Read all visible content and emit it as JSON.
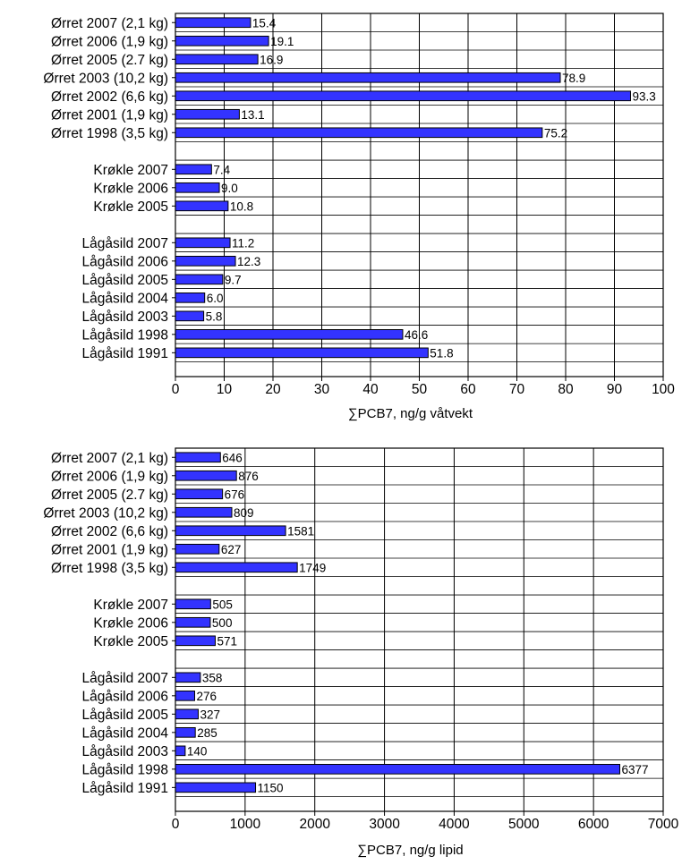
{
  "chart_data": [
    {
      "type": "bar",
      "orientation": "horizontal",
      "categories": [
        "Ørret 2007 (2,1 kg)",
        "Ørret 2006 (1,9 kg)",
        "Ørret 2005 (2.7 kg)",
        "Ørret 2003 (10,2 kg)",
        "Ørret 2002 (6,6 kg)",
        "Ørret 2001 (1,9 kg)",
        "Ørret 1998 (3,5 kg)",
        "",
        "Krøkle 2007",
        "Krøkle 2006",
        "Krøkle 2005",
        "",
        "Lågåsild 2007",
        "Lågåsild 2006",
        "Lågåsild 2005",
        "Lågåsild 2004",
        "Lågåsild 2003",
        "Lågåsild 1998",
        "Lågåsild 1991"
      ],
      "values": [
        15.4,
        19.1,
        16.9,
        78.9,
        93.3,
        13.1,
        75.2,
        null,
        7.4,
        9.0,
        10.8,
        null,
        11.2,
        12.3,
        9.7,
        6.0,
        5.8,
        46.6,
        51.8
      ],
      "value_labels": [
        "15.4",
        "19.1",
        "16.9",
        "78.9",
        "93.3",
        "13.1",
        "75.2",
        "",
        "7.4",
        "9.0",
        "10.8",
        "",
        "11.2",
        "12.3",
        "9.7",
        "6.0",
        "5.8",
        "46.6",
        "51.8"
      ],
      "xlabel": "∑PCB7, ng/g våtvekt",
      "xlim": [
        0,
        100
      ],
      "xticks": [
        0,
        10,
        20,
        30,
        40,
        50,
        60,
        70,
        80,
        90,
        100
      ],
      "xtick_labels": [
        "0",
        "10",
        "20",
        "30",
        "40",
        "50",
        "60",
        "70",
        "80",
        "90",
        "100"
      ],
      "grid": true,
      "bar_color": "#3333ff"
    },
    {
      "type": "bar",
      "orientation": "horizontal",
      "categories": [
        "Ørret 2007 (2,1 kg)",
        "Ørret 2006 (1,9 kg)",
        "Ørret 2005 (2.7 kg)",
        "Ørret 2003 (10,2 kg)",
        "Ørret 2002 (6,6 kg)",
        "Ørret 2001 (1,9 kg)",
        "Ørret 1998 (3,5 kg)",
        "",
        "Krøkle 2007",
        "Krøkle 2006",
        "Krøkle 2005",
        "",
        "Lågåsild 2007",
        "Lågåsild 2006",
        "Lågåsild 2005",
        "Lågåsild 2004",
        "Lågåsild 2003",
        "Lågåsild 1998",
        "Lågåsild 1991"
      ],
      "values": [
        646,
        876,
        676,
        809,
        1581,
        627,
        1749,
        null,
        505,
        500,
        571,
        null,
        358,
        276,
        327,
        285,
        140,
        6377,
        1150
      ],
      "value_labels": [
        "646",
        "876",
        "676",
        "809",
        "1581",
        "627",
        "1749",
        "",
        "505",
        "500",
        "571",
        "",
        "358",
        "276",
        "327",
        "285",
        "140",
        "6377",
        "1150"
      ],
      "xlabel": "∑PCB7, ng/g lipid",
      "xlim": [
        0,
        7000
      ],
      "xticks": [
        0,
        1000,
        2000,
        3000,
        4000,
        5000,
        6000,
        7000
      ],
      "xtick_labels": [
        "0",
        "1000",
        "2000",
        "3000",
        "4000",
        "5000",
        "6000",
        "7000"
      ],
      "grid": true,
      "bar_color": "#3333ff"
    }
  ]
}
